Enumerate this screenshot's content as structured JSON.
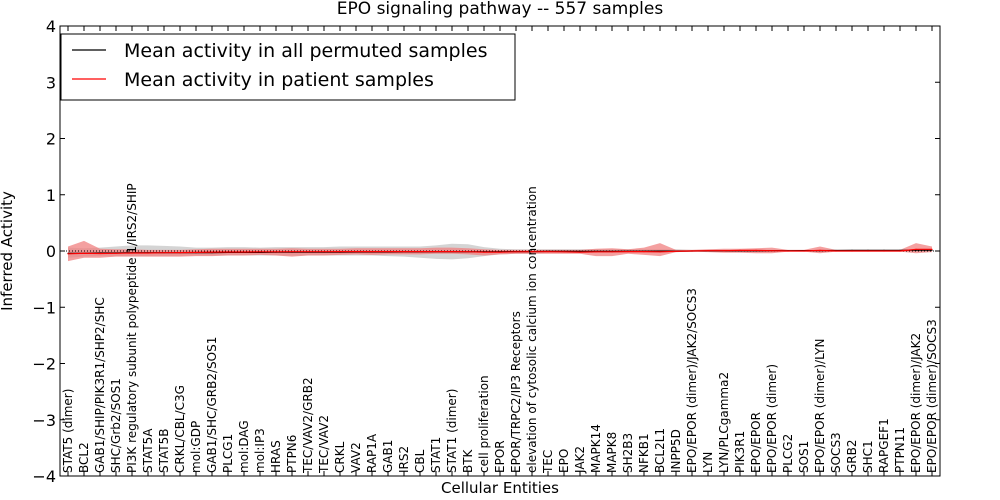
{
  "chart_data": {
    "type": "line",
    "title": "EPO signaling pathway -- 557 samples",
    "xlabel": "Cellular Entities",
    "ylabel": "Inferred Activity",
    "ylim": [
      -4,
      4
    ],
    "yticks": [
      -4,
      -3,
      -2,
      -1,
      0,
      1,
      2,
      3,
      4
    ],
    "legend_position": "top-left",
    "categories": [
      "STAT5 (dimer)",
      "BCL2",
      "GAB1/SHIP/PIK3R1/SHP2/SHC",
      "SHC/Grb2/SOS1",
      "PI3K regulatory subunit polypeptide 1/IRS2/SHIP",
      "STAT5A",
      "STAT5B",
      "CRKL/CBL/C3G",
      "mol:GDP",
      "GAB1/SHC/GRB2/SOS1",
      "PLCG1",
      "mol:DAG",
      "mol:IP3",
      "HRAS",
      "PTPN6",
      "TEC/VAV2/GRB2",
      "TEC/VAV2",
      "CRKL",
      "VAV2",
      "RAP1A",
      "GAB1",
      "IRS2",
      "CBL",
      "STAT1",
      "STAT1 (dimer)",
      "BTK",
      "cell proliferation",
      "EPOR",
      "EPOR/TRPC2/IP3 Receptors",
      "elevation of cytosolic calcium ion concentration",
      "TEC",
      "EPO",
      "JAK2",
      "MAPK14",
      "MAPK8",
      "SH2B3",
      "NFKB1",
      "BCL2L1",
      "INPP5D",
      "EPO/EPOR (dimer)/JAK2/SOCS3",
      "LYN",
      "LYN/PLCgamma2",
      "PIK3R1",
      "EPO/EPOR",
      "EPO/EPOR (dimer)",
      "PLCG2",
      "SOS1",
      "EPO/EPOR (dimer)/LYN",
      "SOCS3",
      "GRB2",
      "SHC1",
      "RAPGEF1",
      "PTPN11",
      "EPO/EPOR (dimer)/JAK2",
      "EPO/EPOR (dimer)/SOCS3"
    ],
    "series": [
      {
        "name": "Mean activity in all permuted samples",
        "color": "#000000",
        "band_color": "#b0b0b0",
        "values": [
          -0.04,
          -0.04,
          -0.035,
          -0.035,
          -0.03,
          -0.03,
          -0.03,
          -0.03,
          -0.028,
          -0.028,
          -0.025,
          -0.025,
          -0.025,
          -0.022,
          -0.022,
          -0.02,
          -0.02,
          -0.02,
          -0.018,
          -0.018,
          -0.018,
          -0.016,
          -0.016,
          -0.015,
          -0.015,
          -0.014,
          -0.012,
          -0.012,
          -0.01,
          -0.01,
          -0.008,
          -0.008,
          -0.007,
          -0.006,
          -0.005,
          -0.004,
          -0.003,
          -0.002,
          -0.001,
          0.0,
          0.001,
          0.002,
          0.003,
          0.004,
          0.005,
          0.006,
          0.007,
          0.008,
          0.009,
          0.01,
          0.011,
          0.012,
          0.013,
          0.014,
          0.015
        ],
        "lower": [
          -0.12,
          -0.1,
          -0.09,
          -0.09,
          -0.09,
          -0.09,
          -0.09,
          -0.09,
          -0.08,
          -0.08,
          -0.08,
          -0.08,
          -0.08,
          -0.08,
          -0.08,
          -0.08,
          -0.08,
          -0.08,
          -0.08,
          -0.08,
          -0.09,
          -0.1,
          -0.12,
          -0.14,
          -0.15,
          -0.13,
          -0.09,
          -0.06,
          -0.05,
          -0.05,
          -0.04,
          -0.04,
          -0.04,
          -0.03,
          -0.03,
          -0.03,
          -0.03,
          -0.03,
          -0.02,
          -0.01,
          -0.01,
          -0.01,
          -0.01,
          -0.01,
          -0.01,
          -0.01,
          -0.01,
          -0.01,
          -0.01,
          -0.01,
          -0.01,
          -0.01,
          -0.01,
          -0.01,
          -0.01
        ],
        "upper": [
          0.06,
          0.05,
          0.06,
          0.08,
          0.1,
          0.1,
          0.09,
          0.08,
          0.06,
          0.06,
          0.07,
          0.07,
          0.06,
          0.07,
          0.07,
          0.07,
          0.07,
          0.08,
          0.08,
          0.08,
          0.08,
          0.08,
          0.08,
          0.1,
          0.13,
          0.12,
          0.07,
          0.04,
          0.03,
          0.03,
          0.03,
          0.03,
          0.03,
          0.03,
          0.03,
          0.03,
          0.03,
          0.03,
          0.03,
          0.02,
          0.02,
          0.02,
          0.02,
          0.02,
          0.02,
          0.02,
          0.02,
          0.02,
          0.02,
          0.02,
          0.02,
          0.02,
          0.02,
          0.02,
          0.02
        ]
      },
      {
        "name": "Mean activity in patient samples",
        "color": "#ff0000",
        "band_color": "#f08080",
        "values": [
          -0.05,
          -0.04,
          -0.045,
          -0.04,
          -0.035,
          -0.035,
          -0.03,
          -0.028,
          -0.025,
          -0.02,
          -0.018,
          -0.018,
          -0.015,
          -0.015,
          -0.012,
          -0.012,
          -0.012,
          -0.01,
          -0.01,
          -0.01,
          -0.01,
          -0.01,
          -0.01,
          -0.01,
          -0.01,
          -0.012,
          -0.02,
          -0.02,
          -0.015,
          -0.012,
          -0.012,
          -0.015,
          -0.02,
          -0.015,
          -0.015,
          -0.01,
          -0.01,
          -0.015,
          -0.005,
          0.0,
          0.005,
          0.005,
          0.01,
          0.01,
          0.005,
          0.0,
          0.0,
          0.01,
          0.0,
          0.0,
          0.0,
          0.0,
          0.0,
          0.03,
          0.03
        ],
        "lower": [
          -0.18,
          -0.12,
          -0.12,
          -0.1,
          -0.1,
          -0.1,
          -0.1,
          -0.1,
          -0.09,
          -0.09,
          -0.08,
          -0.08,
          -0.07,
          -0.08,
          -0.1,
          -0.08,
          -0.08,
          -0.07,
          -0.06,
          -0.07,
          -0.06,
          -0.06,
          -0.06,
          -0.05,
          -0.05,
          -0.06,
          -0.08,
          -0.06,
          -0.05,
          -0.05,
          -0.05,
          -0.05,
          -0.05,
          -0.09,
          -0.09,
          -0.05,
          -0.07,
          -0.09,
          -0.02,
          -0.01,
          -0.02,
          -0.03,
          -0.03,
          -0.04,
          -0.04,
          -0.01,
          -0.01,
          -0.04,
          -0.01,
          -0.01,
          -0.01,
          -0.01,
          -0.01,
          -0.04,
          -0.02
        ],
        "upper": [
          0.08,
          0.18,
          0.04,
          0.03,
          0.03,
          0.02,
          0.02,
          0.02,
          0.03,
          0.04,
          0.04,
          0.04,
          0.04,
          0.04,
          0.05,
          0.04,
          0.04,
          0.04,
          0.05,
          0.05,
          0.05,
          0.05,
          0.05,
          0.06,
          0.06,
          0.05,
          0.03,
          0.02,
          0.02,
          0.02,
          0.02,
          0.02,
          0.02,
          0.04,
          0.05,
          0.03,
          0.06,
          0.14,
          0.02,
          0.02,
          0.03,
          0.04,
          0.04,
          0.05,
          0.06,
          0.02,
          0.02,
          0.08,
          0.02,
          0.02,
          0.02,
          0.02,
          0.02,
          0.14,
          0.08
        ]
      }
    ]
  }
}
